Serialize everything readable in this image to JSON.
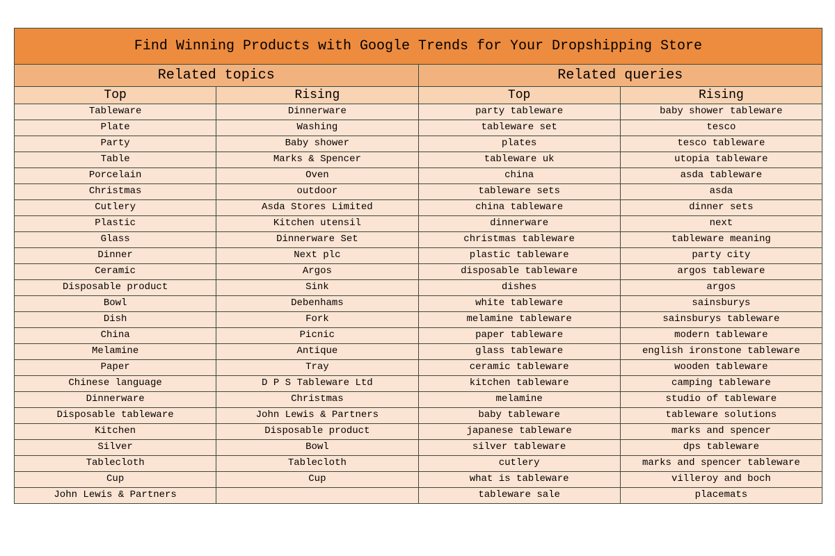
{
  "colors": {
    "title_bg": "#ed8c3f",
    "section_bg": "#f2b27e",
    "header_bg": "#f8d3b4",
    "row_bg": "#fbe4d3",
    "border": "#3b4a3b",
    "text": "#000000"
  },
  "title": "Find Winning Products with Google Trends for Your Dropshipping Store",
  "sections": {
    "left": "Related topics",
    "right": "Related queries"
  },
  "columns": [
    "Top",
    "Rising",
    "Top",
    "Rising"
  ],
  "rows": [
    [
      "Tableware",
      "Dinnerware",
      "party tableware",
      "baby shower tableware"
    ],
    [
      "Plate",
      "Washing",
      "tableware set",
      "tesco"
    ],
    [
      "Party",
      "Baby shower",
      "plates",
      "tesco tableware"
    ],
    [
      "Table",
      "Marks & Spencer",
      "tableware uk",
      "utopia tableware"
    ],
    [
      "Porcelain",
      "Oven",
      "china",
      "asda tableware"
    ],
    [
      "Christmas",
      "outdoor",
      "tableware sets",
      "asda"
    ],
    [
      "Cutlery",
      "Asda Stores Limited",
      "china tableware",
      "dinner sets"
    ],
    [
      "Plastic",
      "Kitchen utensil",
      "dinnerware",
      "next"
    ],
    [
      "Glass",
      "Dinnerware Set",
      "christmas tableware",
      "tableware meaning"
    ],
    [
      "Dinner",
      "Next plc",
      "plastic tableware",
      "party city"
    ],
    [
      "Ceramic",
      "Argos",
      "disposable tableware",
      "argos tableware"
    ],
    [
      "Disposable product",
      "Sink",
      "dishes",
      "argos"
    ],
    [
      "Bowl",
      "Debenhams",
      "white tableware",
      "sainsburys"
    ],
    [
      "Dish",
      "Fork",
      "melamine tableware",
      "sainsburys tableware"
    ],
    [
      "China",
      "Picnic",
      "paper tableware",
      "modern tableware"
    ],
    [
      "Melamine",
      "Antique",
      "glass tableware",
      "english ironstone tableware"
    ],
    [
      "Paper",
      "Tray",
      "ceramic tableware",
      "wooden tableware"
    ],
    [
      "Chinese language",
      "D P S Tableware Ltd",
      "kitchen tableware",
      "camping tableware"
    ],
    [
      "Dinnerware",
      "Christmas",
      "melamine",
      "studio of tableware"
    ],
    [
      "Disposable tableware",
      "John Lewis & Partners",
      "baby tableware",
      "tableware solutions"
    ],
    [
      "Kitchen",
      "Disposable product",
      "japanese tableware",
      "marks and spencer"
    ],
    [
      "Silver",
      "Bowl",
      "silver tableware",
      "dps tableware"
    ],
    [
      "Tablecloth",
      "Tablecloth",
      "cutlery",
      "marks and spencer tableware"
    ],
    [
      "Cup",
      "Cup",
      "what is tableware",
      "villeroy and boch"
    ],
    [
      "John Lewis & Partners",
      "",
      "tableware sale",
      "placemats"
    ]
  ]
}
